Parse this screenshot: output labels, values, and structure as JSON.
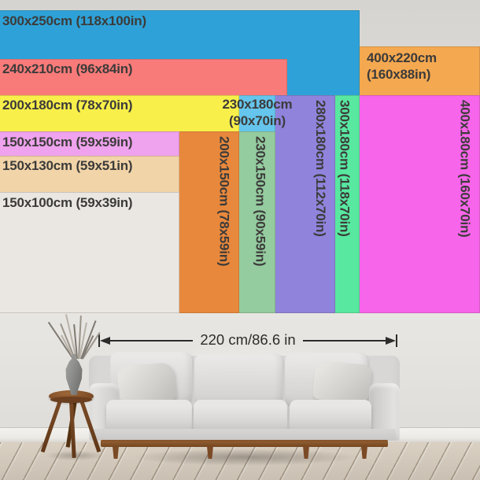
{
  "chart": {
    "description_unit": "cm",
    "sizes": [
      {
        "id": "400x220",
        "w_cm": 400,
        "h_cm": 220,
        "color": "#f4a850",
        "lines": [
          "400x220cm",
          "(160x88in)"
        ],
        "label_type": "two-line-right"
      },
      {
        "id": "300x250",
        "w_cm": 300,
        "h_cm": 250,
        "color": "#2ea2d8",
        "lines": [
          "300x250cm (118x100in)"
        ],
        "label_type": "top-left"
      },
      {
        "id": "240x210",
        "w_cm": 240,
        "h_cm": 210,
        "color": "#f87b79",
        "lines": [
          "240x210cm (96x84in)"
        ],
        "label_type": "top-left"
      },
      {
        "id": "400x180",
        "w_cm": 400,
        "h_cm": 180,
        "color": "#f765ea",
        "lines": [
          "400x180cm (160x70in)"
        ],
        "label_type": "vertical"
      },
      {
        "id": "300x180",
        "w_cm": 300,
        "h_cm": 180,
        "color": "#58e8a0",
        "lines": [
          "300x180cm (118x70in)"
        ],
        "label_type": "vertical"
      },
      {
        "id": "280x180",
        "w_cm": 280,
        "h_cm": 180,
        "color": "#8f83dc",
        "lines": [
          "280x180cm (112x70in)"
        ],
        "label_type": "vertical"
      },
      {
        "id": "230x180",
        "w_cm": 230,
        "h_cm": 180,
        "color": "#65c5ec",
        "lines": [
          "230x180cm",
          "(90x70in)"
        ],
        "label_type": "two-line-center"
      },
      {
        "id": "200x180",
        "w_cm": 200,
        "h_cm": 180,
        "color": "#f8ef4a",
        "lines": [
          "200x180cm (78x70in)"
        ],
        "label_type": "top-left"
      },
      {
        "id": "230x150",
        "w_cm": 230,
        "h_cm": 150,
        "color": "#94cb9f",
        "lines": [
          "230x150cm (90x59in)"
        ],
        "label_type": "vertical"
      },
      {
        "id": "200x150",
        "w_cm": 200,
        "h_cm": 150,
        "color": "#e8883c",
        "lines": [
          "200x150cm (78x59in)"
        ],
        "label_type": "vertical"
      },
      {
        "id": "150x150",
        "w_cm": 150,
        "h_cm": 150,
        "color": "#efa2ed",
        "lines": [
          "150x150cm (59x59in)"
        ],
        "label_type": "top-left"
      },
      {
        "id": "150x130",
        "w_cm": 150,
        "h_cm": 130,
        "color": "#f1d4a8",
        "lines": [
          "150x130cm (59x51in)"
        ],
        "label_type": "top-left"
      },
      {
        "id": "150x100",
        "w_cm": 150,
        "h_cm": 100,
        "color": "#eae6e1",
        "lines": [
          "150x100cm (59x39in)"
        ],
        "label_type": "top-left"
      }
    ],
    "text_color": "#3c3b3a"
  },
  "measure": {
    "label": "220 cm/86.6 in",
    "color": "#2d2c2b"
  },
  "scene": {
    "wall_color": "#e7e5e1",
    "baseboard_color": "#f4f2ee",
    "floor_color": "#e2dacd",
    "sofa_color": "#d8d7d5",
    "wood_color": "#855327",
    "vase_color": "#8d8d8b"
  }
}
